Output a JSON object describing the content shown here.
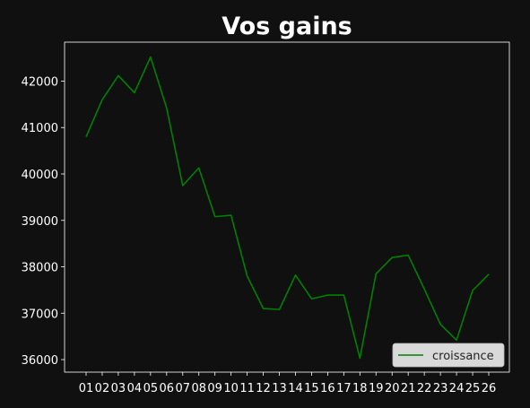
{
  "chart_data": {
    "type": "line",
    "title": "Vos gains",
    "xlabel": "",
    "ylabel": "",
    "categories": [
      "01",
      "02",
      "03",
      "04",
      "05",
      "06",
      "07",
      "08",
      "09",
      "10",
      "11",
      "12",
      "13",
      "14",
      "15",
      "16",
      "17",
      "18",
      "19",
      "20",
      "21",
      "22",
      "23",
      "24",
      "25",
      "26"
    ],
    "series": [
      {
        "name": "croissance",
        "color": "#008000",
        "values": [
          40800,
          41600,
          42120,
          41750,
          42520,
          41420,
          39750,
          40130,
          39080,
          39110,
          37800,
          37100,
          37080,
          37820,
          37310,
          37390,
          37390,
          36030,
          37850,
          38200,
          38250,
          37520,
          36760,
          36420,
          37490,
          37840
        ]
      }
    ],
    "ylim": [
      35730,
      42840
    ],
    "yticks": [
      36000,
      37000,
      38000,
      39000,
      40000,
      41000,
      42000
    ],
    "grid": false,
    "legend_position": "lower-right",
    "background": "#101010",
    "axes_color": "#ffffff",
    "text_color": "#ffffff"
  }
}
